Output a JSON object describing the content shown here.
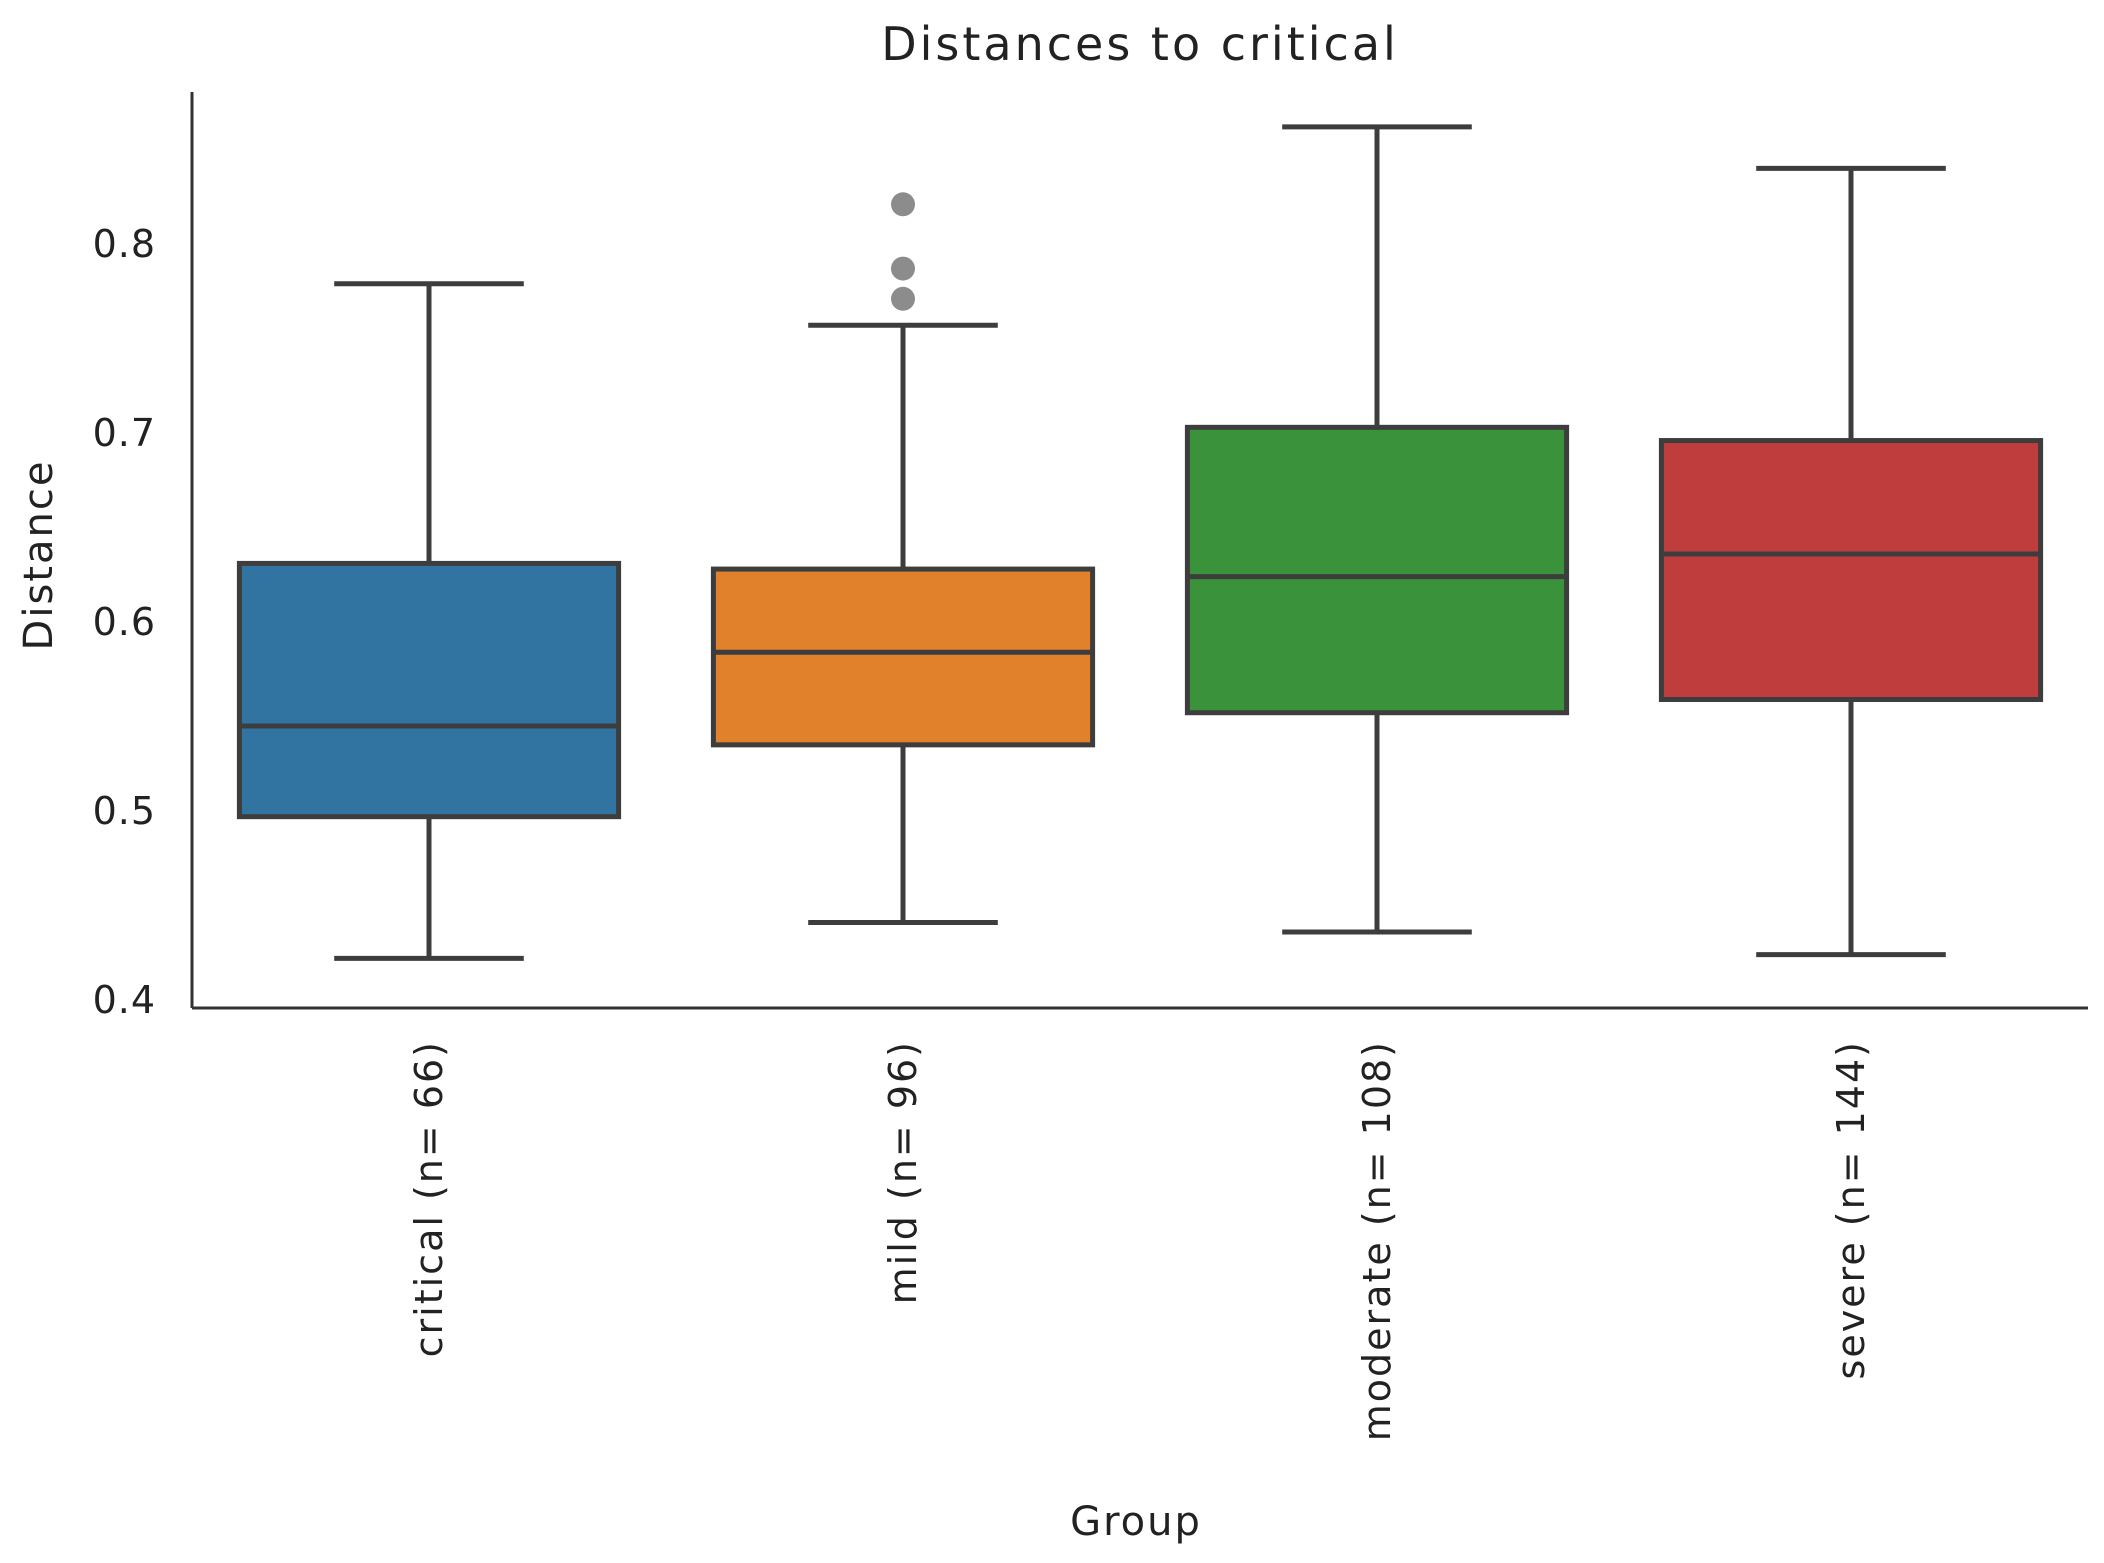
{
  "chart_data": {
    "type": "box",
    "title": "Distances to critical",
    "xlabel": "Group",
    "ylabel": "Distance",
    "ylim": [
      0.4,
      0.875
    ],
    "yticks": [
      {
        "value": 0.4,
        "label": "0.4"
      },
      {
        "value": 0.5,
        "label": "0.5"
      },
      {
        "value": 0.6,
        "label": "0.6"
      },
      {
        "value": 0.7,
        "label": "0.7"
      },
      {
        "value": 0.8,
        "label": "0.8"
      }
    ],
    "grid": false,
    "categories": [
      "critical (n= 66)",
      "mild (n= 96)",
      "moderate (n= 108)",
      "severe (n= 144)"
    ],
    "boxes": [
      {
        "category": "critical (n= 66)",
        "whisker_low": 0.422,
        "q1": 0.497,
        "median": 0.545,
        "q3": 0.631,
        "whisker_high": 0.779,
        "outliers": [],
        "color": "#3274a1"
      },
      {
        "category": "mild (n= 96)",
        "whisker_low": 0.441,
        "q1": 0.535,
        "median": 0.584,
        "q3": 0.628,
        "whisker_high": 0.757,
        "outliers": [
          0.771,
          0.787,
          0.821
        ],
        "color": "#e1812c"
      },
      {
        "category": "moderate (n= 108)",
        "whisker_low": 0.436,
        "q1": 0.552,
        "median": 0.624,
        "q3": 0.703,
        "whisker_high": 0.862,
        "outliers": [],
        "color": "#3a923a"
      },
      {
        "category": "severe (n= 144)",
        "whisker_low": 0.424,
        "q1": 0.559,
        "median": 0.636,
        "q3": 0.696,
        "whisker_high": 0.84,
        "outliers": [],
        "color": "#c03d3e"
      }
    ]
  }
}
